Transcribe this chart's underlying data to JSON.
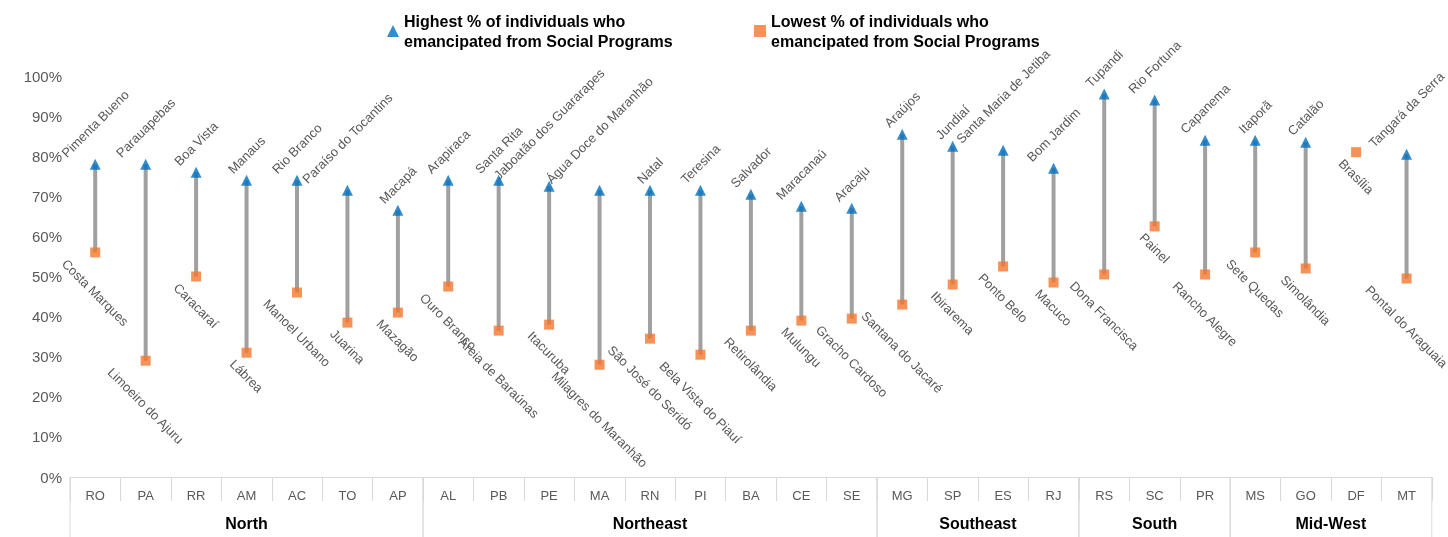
{
  "chart_data": [
    {
      "type": "scatter",
      "xlabel": "North",
      "categories": [
        "RO",
        "PA",
        "RR",
        "AM",
        "AC",
        "TO",
        "AP"
      ],
      "series": [
        {
          "name": "Highest % of individuals who emancipated from Social Programs",
          "color": "#0070c0",
          "marker": "triangle",
          "values": [
            78,
            78,
            76,
            74,
            74,
            71.5,
            66.5
          ]
        },
        {
          "name": "Lowest % of individuals who emancipated from Social Programs",
          "color": "#f4772e",
          "marker": "square",
          "values": [
            56,
            29,
            50,
            31,
            46,
            38.5,
            41
          ]
        }
      ],
      "ylim": [
        0,
        100
      ],
      "yticks": [
        {
          "value": 0,
          "label": "0%"
        },
        {
          "value": 10,
          "label": "10%"
        },
        {
          "value": 20,
          "label": "20%"
        },
        {
          "value": 30,
          "label": "30%"
        },
        {
          "value": 40,
          "label": "40%"
        },
        {
          "value": 50,
          "label": "50%"
        },
        {
          "value": 60,
          "label": "60%"
        },
        {
          "value": 70,
          "label": "70%"
        },
        {
          "value": 80,
          "label": "80%"
        },
        {
          "value": 90,
          "label": "90%"
        },
        {
          "value": 100,
          "label": "100%"
        }
      ],
      "grid": false,
      "legend": "top",
      "annotations": [
        {
          "text": "Pimenta Bueno",
          "x": "RO",
          "y": 78
        },
        {
          "text": "Costa Marques",
          "x": "RO",
          "y": 56
        },
        {
          "text": "Parauapebas",
          "x": "PA",
          "y": 78
        },
        {
          "text": "Limoeiro do Ajuru",
          "x": "PA",
          "y": 29
        },
        {
          "text": "Boa Vista",
          "x": "RR",
          "y": 76
        },
        {
          "text": "Caracaraí",
          "x": "RR",
          "y": 50
        },
        {
          "text": "Manaus",
          "x": "AM",
          "y": 74
        },
        {
          "text": "Lábrea",
          "x": "AM",
          "y": 31
        },
        {
          "text": "Rio Branco",
          "x": "AC",
          "y": 74
        },
        {
          "text": "Manoel Urbano",
          "x": "AC",
          "y": 46
        },
        {
          "text": "Paraíso do Tocantins",
          "x": "TO",
          "y": 71.5
        },
        {
          "text": "Juarina",
          "x": "TO",
          "y": 38.5
        },
        {
          "text": "Macapá",
          "x": "AP",
          "y": 66.5
        },
        {
          "text": "Mazagão",
          "x": "AP",
          "y": 41
        }
      ]
    },
    {
      "type": "scatter",
      "xlabel": "Northeast",
      "categories": [
        "AL",
        "PB",
        "PE",
        "MA",
        "RN",
        "PI",
        "BA",
        "CE",
        "SE"
      ],
      "series": [
        {
          "color": "#0070c0",
          "marker": "triangle",
          "values": [
            74,
            74,
            72.5,
            71.5,
            71.5,
            71.5,
            70.5,
            67.5,
            67
          ]
        },
        {
          "color": "#f4772e",
          "marker": "square",
          "values": [
            47.5,
            36.5,
            38,
            28,
            34.5,
            30.5,
            36.5,
            39,
            39.5
          ]
        }
      ],
      "ylim": [
        0,
        100
      ],
      "grid": false,
      "tick_labels": "x",
      "annotations": [
        {
          "text": "Arapiraca",
          "x": "AL",
          "y": 74
        },
        {
          "text": "Ouro Branco",
          "x": "AL",
          "y": 47.5
        },
        {
          "text": "Santa Rita",
          "x": "PB",
          "y": 74
        },
        {
          "text": "Areia de Baraúnas",
          "x": "PB",
          "y": 36.5
        },
        {
          "text": "Jaboatão dos Guararapes",
          "x": "PE",
          "y": 72.5
        },
        {
          "text": "Itacuruba",
          "x": "PE",
          "y": 38
        },
        {
          "text": "Água Doce do Maranhão",
          "x": "MA",
          "y": 71.5
        },
        {
          "text": "Milagres do Maranhão",
          "x": "MA",
          "y": 28
        },
        {
          "text": "Natal",
          "x": "RN",
          "y": 71.5
        },
        {
          "text": "São José do Seridó",
          "x": "RN",
          "y": 34.5
        },
        {
          "text": "Teresina",
          "x": "PI",
          "y": 71.5
        },
        {
          "text": "Bela Vista do Piauí",
          "x": "PI",
          "y": 30.5
        },
        {
          "text": "Salvador",
          "x": "BA",
          "y": 70.5
        },
        {
          "text": "Retirolândia",
          "x": "BA",
          "y": 36.5
        },
        {
          "text": "Maracanaú",
          "x": "CE",
          "y": 67.5
        },
        {
          "text": "Mulungu",
          "x": "CE",
          "y": 39
        },
        {
          "text": "Aracaju",
          "x": "SE",
          "y": 67
        },
        {
          "text": "Gracho Cardoso",
          "x": "SE",
          "y": 39.5
        }
      ]
    },
    {
      "type": "scatter",
      "xlabel": "Southeast",
      "categories": [
        "MG",
        "SP",
        "ES",
        "RJ"
      ],
      "series": [
        {
          "color": "#0070c0",
          "marker": "triangle",
          "values": [
            85.5,
            82.5,
            81.5,
            77
          ]
        },
        {
          "color": "#f4772e",
          "marker": "square",
          "values": [
            43,
            48,
            52.5,
            48.5
          ]
        }
      ],
      "ylim": [
        0,
        100
      ],
      "grid": false,
      "tick_labels": "x",
      "annotations": [
        {
          "text": "Araújos",
          "x": "MG",
          "y": 85.5
        },
        {
          "text": "Santana do Jacaré",
          "x": "MG",
          "y": 43
        },
        {
          "text": "Jundiaí",
          "x": "SP",
          "y": 82.5
        },
        {
          "text": "Ibirarema",
          "x": "SP",
          "y": 48
        },
        {
          "text": "Santa Maria de Jetiba",
          "x": "ES",
          "y": 81.5
        },
        {
          "text": "Ponto Belo",
          "x": "ES",
          "y": 52.5
        },
        {
          "text": "Bom Jardim",
          "x": "RJ",
          "y": 77
        },
        {
          "text": "Macuco",
          "x": "RJ",
          "y": 48.5
        }
      ]
    },
    {
      "type": "scatter",
      "xlabel": "South",
      "categories": [
        "RS",
        "SC",
        "PR"
      ],
      "series": [
        {
          "color": "#0070c0",
          "marker": "triangle",
          "values": [
            95.5,
            94,
            84
          ]
        },
        {
          "color": "#f4772e",
          "marker": "square",
          "values": [
            50.5,
            62.5,
            50.5
          ]
        }
      ],
      "ylim": [
        0,
        100
      ],
      "grid": false,
      "tick_labels": "x",
      "annotations": [
        {
          "text": "Tupandi",
          "x": "RS",
          "y": 95.5
        },
        {
          "text": "Dona Francisca",
          "x": "RS",
          "y": 50.5
        },
        {
          "text": "Rio Fortuna",
          "x": "SC",
          "y": 94
        },
        {
          "text": "Painel",
          "x": "SC",
          "y": 62.5
        },
        {
          "text": "Capanema",
          "x": "PR",
          "y": 84
        },
        {
          "text": "Rancho Alegre",
          "x": "PR",
          "y": 50.5
        }
      ]
    },
    {
      "type": "scatter",
      "xlabel": "Mid-West",
      "categories": [
        "MS",
        "GO",
        "DF",
        "MT"
      ],
      "series": [
        {
          "color": "#0070c0",
          "marker": "triangle",
          "values": [
            84,
            83.5,
            null,
            80.5
          ]
        },
        {
          "color": "#f4772e",
          "marker": "square",
          "values": [
            56,
            52,
            81,
            49.5
          ]
        }
      ],
      "ylim": [
        0,
        100
      ],
      "grid": false,
      "tick_labels": "x",
      "annotations": [
        {
          "text": "Itaporã",
          "x": "MS",
          "y": 84
        },
        {
          "text": "Sete Quedas",
          "x": "MS",
          "y": 56
        },
        {
          "text": "Catalão",
          "x": "GO",
          "y": 83.5
        },
        {
          "text": "Simolândia",
          "x": "GO",
          "y": 52
        },
        {
          "text": "Brasília",
          "x": "DF",
          "y": 81
        },
        {
          "text": "Tangará da Serra",
          "x": "MT",
          "y": 80.5
        },
        {
          "text": "Pontal do Araguaia",
          "x": "MT",
          "y": 49.5
        }
      ]
    }
  ]
}
